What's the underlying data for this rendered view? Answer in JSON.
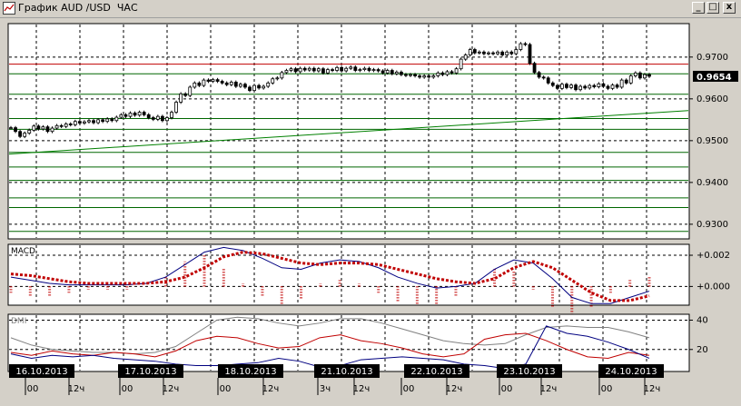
{
  "window": {
    "title": "График AUD /USD  ЧАС",
    "minimize_glyph": "_",
    "maximize_glyph": "□",
    "close_glyph": "x",
    "icon": "chart-app-icon"
  },
  "chart_data": [
    {
      "type": "candlestick",
      "panel": "price",
      "ylim": [
        0.9265,
        0.978
      ],
      "yticks": [
        0.93,
        0.94,
        0.95,
        0.96,
        0.97
      ],
      "ytick_labels": [
        "0.9300",
        "0.9400",
        "0.9500",
        "0.9600",
        "0.9700"
      ],
      "current_price": 0.9654,
      "current_price_label": "0.9654",
      "grid": true,
      "horizontal_lines": [
        {
          "y": 0.9683,
          "color": "#c00000"
        },
        {
          "y": 0.966,
          "color": "#006600"
        },
        {
          "y": 0.9611,
          "color": "#006600"
        },
        {
          "y": 0.9553,
          "color": "#006600"
        },
        {
          "y": 0.9527,
          "color": "#006600"
        },
        {
          "y": 0.9472,
          "color": "#006600"
        },
        {
          "y": 0.9437,
          "color": "#006600"
        },
        {
          "y": 0.9405,
          "color": "#006600"
        },
        {
          "y": 0.9363,
          "color": "#006600"
        },
        {
          "y": 0.934,
          "color": "#006600"
        },
        {
          "y": 0.9283,
          "color": "#006600"
        }
      ],
      "trendline": {
        "color": "#008000",
        "from": [
          0,
          0.9468
        ],
        "to": [
          1,
          0.9572
        ]
      },
      "closes": [
        0.9531,
        0.9522,
        0.951,
        0.9518,
        0.9525,
        0.9535,
        0.9528,
        0.9533,
        0.9522,
        0.953,
        0.9536,
        0.9534,
        0.954,
        0.9538,
        0.9546,
        0.9542,
        0.9545,
        0.9548,
        0.9543,
        0.955,
        0.9546,
        0.9552,
        0.9548,
        0.9556,
        0.9562,
        0.9558,
        0.9566,
        0.9561,
        0.9568,
        0.9562,
        0.9555,
        0.9551,
        0.9558,
        0.9548,
        0.9555,
        0.9568,
        0.9592,
        0.9612,
        0.9608,
        0.9628,
        0.9638,
        0.9632,
        0.9645,
        0.9642,
        0.9646,
        0.9642,
        0.9638,
        0.9634,
        0.964,
        0.963,
        0.9635,
        0.9628,
        0.962,
        0.9632,
        0.9626,
        0.963,
        0.9638,
        0.9648,
        0.965,
        0.9663,
        0.9668,
        0.9672,
        0.9665,
        0.9673,
        0.9669,
        0.9673,
        0.9667,
        0.9672,
        0.9662,
        0.967,
        0.9668,
        0.9675,
        0.9667,
        0.9673,
        0.9676,
        0.9668,
        0.967,
        0.9673,
        0.9668,
        0.967,
        0.9667,
        0.9662,
        0.9668,
        0.966,
        0.9664,
        0.9658,
        0.9656,
        0.9658,
        0.9655,
        0.9652,
        0.9655,
        0.9652,
        0.9655,
        0.9662,
        0.9658,
        0.9665,
        0.9662,
        0.9672,
        0.9695,
        0.9705,
        0.9718,
        0.971,
        0.9712,
        0.9708,
        0.971,
        0.9708,
        0.9712,
        0.9705,
        0.9712,
        0.9708,
        0.9718,
        0.9732,
        0.973,
        0.9685,
        0.9663,
        0.9652,
        0.965,
        0.9638,
        0.9632,
        0.9625,
        0.9635,
        0.9627,
        0.9633,
        0.9622,
        0.963,
        0.9626,
        0.9632,
        0.9629,
        0.9636,
        0.963,
        0.9625,
        0.9633,
        0.9628,
        0.9645,
        0.9638,
        0.9655,
        0.9662,
        0.965,
        0.9658,
        0.9654
      ]
    },
    {
      "type": "line",
      "panel": "macd",
      "title": "MACD",
      "ylim": [
        -0.0012,
        0.0027
      ],
      "yticks": [
        0.002,
        0.0
      ],
      "ytick_labels": [
        "+0.002",
        "+0.000"
      ],
      "grid": true,
      "histogram_color": "#c00000",
      "signal_color": "#c00000",
      "macd_color": "#000080",
      "macd": [
        0.0006,
        0.0004,
        0.0002,
        0.0001,
        0.0001,
        0.0001,
        0.0001,
        0.0002,
        0.0006,
        0.0014,
        0.0022,
        0.0025,
        0.0023,
        0.0018,
        0.0012,
        0.0011,
        0.0015,
        0.0017,
        0.0016,
        0.0012,
        0.0006,
        0.0002,
        -0.0001,
        0.0,
        0.0002,
        0.0011,
        0.0017,
        0.0015,
        0.0005,
        -0.0007,
        -0.0011,
        -0.0011,
        -0.0007,
        -0.0003
      ],
      "signal": [
        0.0008,
        0.0007,
        0.0005,
        0.0003,
        0.0002,
        0.0002,
        0.0002,
        0.0002,
        0.0003,
        0.0006,
        0.0012,
        0.0019,
        0.0022,
        0.0021,
        0.0018,
        0.0015,
        0.0014,
        0.0015,
        0.0015,
        0.0014,
        0.0011,
        0.0008,
        0.0005,
        0.0003,
        0.0002,
        0.0005,
        0.0012,
        0.0016,
        0.0012,
        0.0004,
        -0.0004,
        -0.0009,
        -0.0009,
        -0.0006
      ]
    },
    {
      "type": "line",
      "panel": "dmi",
      "title": "DMI",
      "ylim": [
        5,
        44
      ],
      "yticks": [
        40,
        20
      ],
      "ytick_labels": [
        "40",
        "20"
      ],
      "grid": true,
      "series": [
        {
          "color": "#808080",
          "values": [
            28,
            23,
            20,
            19,
            18,
            18,
            17,
            18,
            22,
            31,
            40,
            42,
            41,
            38,
            36,
            38,
            41,
            41,
            38,
            34,
            30,
            26,
            24,
            23,
            24,
            30,
            35,
            36,
            35,
            35,
            32,
            28
          ]
        },
        {
          "color": "#c00000",
          "values": [
            18,
            16,
            19,
            17,
            16,
            18,
            17,
            15,
            19,
            26,
            29,
            28,
            24,
            21,
            22,
            28,
            30,
            26,
            24,
            21,
            17,
            15,
            17,
            27,
            30,
            31,
            26,
            20,
            15,
            14,
            18,
            16
          ]
        },
        {
          "color": "#000080",
          "values": [
            17,
            14,
            16,
            15,
            16,
            14,
            13,
            12,
            10,
            9,
            9,
            10,
            11,
            14,
            12,
            8,
            9,
            13,
            14,
            15,
            14,
            13,
            10,
            9,
            7,
            10,
            36,
            31,
            29,
            25,
            20,
            14
          ]
        }
      ]
    }
  ],
  "date_labels": [
    "16.10.2013",
    "17.10.2013",
    "18.10.2013",
    "21.10.2013",
    "22.10.2013",
    "23.10.2013",
    "24.10.2013"
  ],
  "hour_labels": [
    "00",
    "12ч",
    "00",
    "12ч",
    "00",
    "12ч",
    "3ч",
    "12ч",
    "00",
    "12ч",
    "00",
    "12ч",
    "00",
    "12ч"
  ]
}
